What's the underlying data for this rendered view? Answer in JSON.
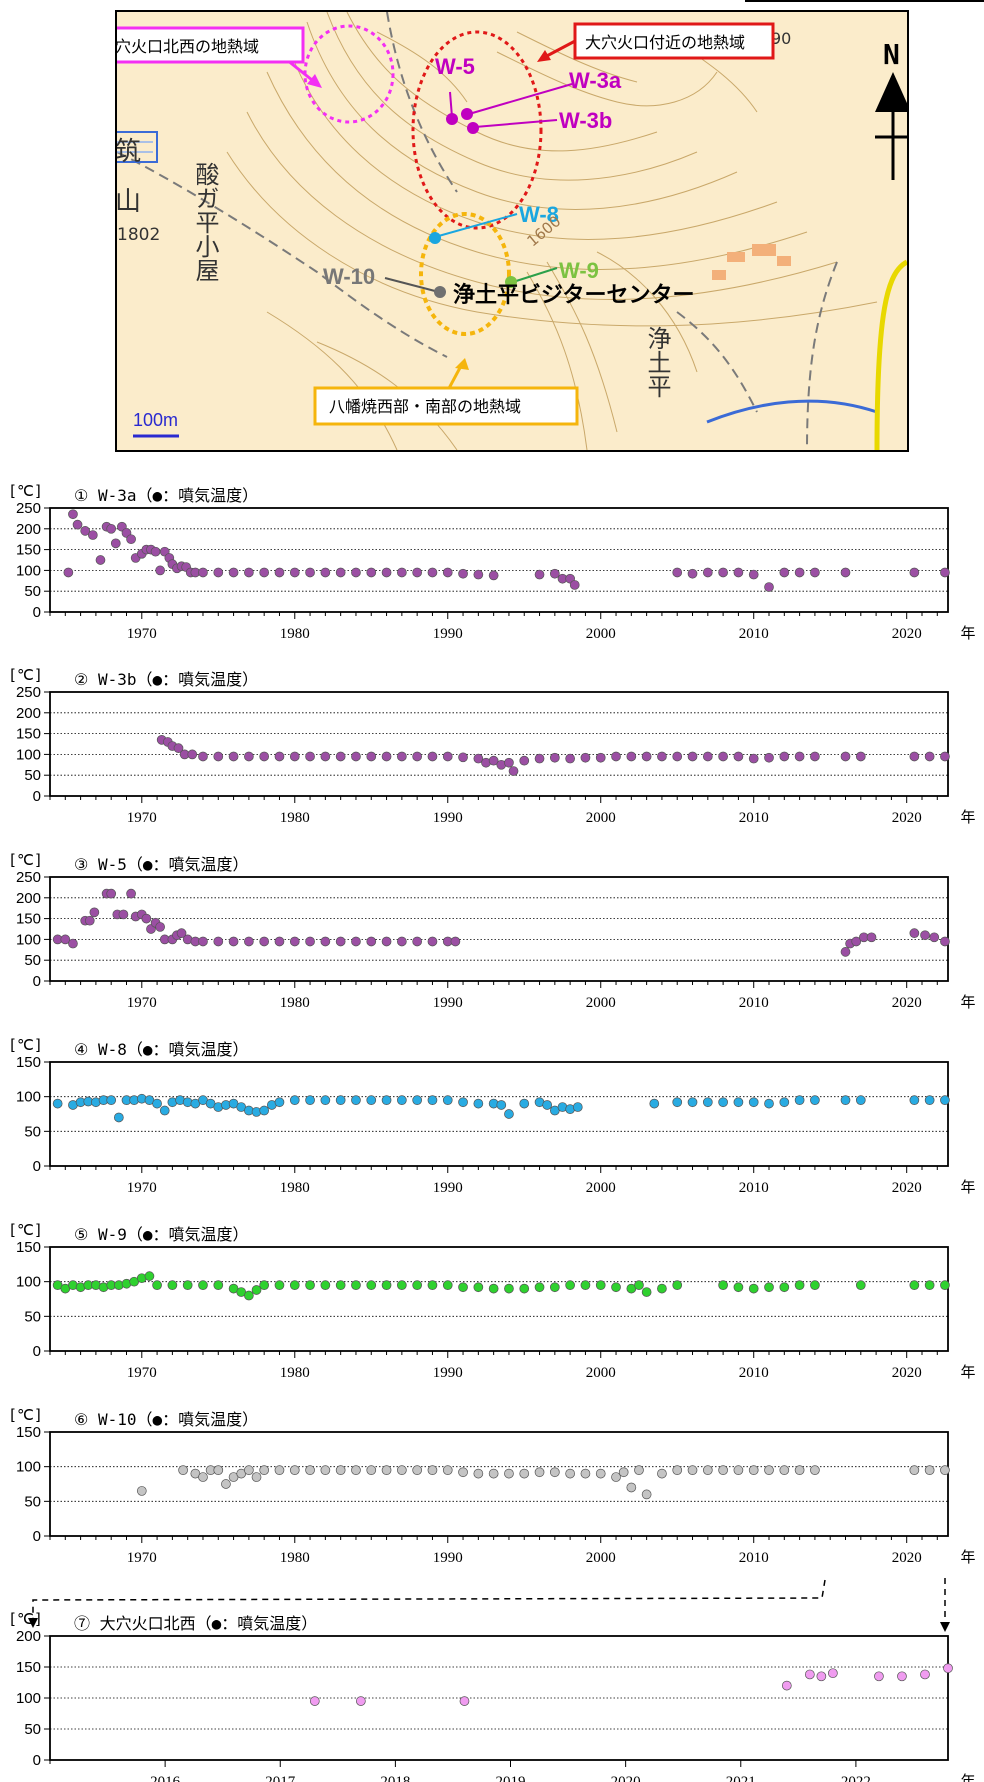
{
  "map": {
    "labels": {
      "area_nw": "大穴火口北西の地熱域",
      "area_crater": "大穴火口付近の地熱域",
      "area_hachiman": "八幡焼西部・南部の地熱域",
      "north": "N",
      "scale": "100m",
      "visitor_center": "浄土平ビジターセンター",
      "hut": "酸ガ平小屋",
      "mountain": "山",
      "mountain_prefix": "筑",
      "elevation": "1802",
      "jodo": "浄土平",
      "contour_90": "90",
      "contour_1600": "1600"
    },
    "stations": [
      {
        "id": "W-5",
        "color": "#c000c0"
      },
      {
        "id": "W-3a",
        "color": "#c000c0"
      },
      {
        "id": "W-3b",
        "color": "#c000c0"
      },
      {
        "id": "W-8",
        "color": "#1aa6e0"
      },
      {
        "id": "W-9",
        "color": "#7cc242"
      },
      {
        "id": "W-10",
        "color": "#808080"
      }
    ]
  },
  "chart_data": [
    {
      "type": "scatter",
      "title": "① W-3a（●：噴気温度）",
      "y_unit": "[℃]",
      "x_unit": "年",
      "xlim": [
        1964,
        2022.7
      ],
      "ylim": [
        0,
        250
      ],
      "y_ticks": [
        0,
        50,
        100,
        150,
        200,
        250
      ],
      "x_ticks": [
        1970,
        1980,
        1990,
        2000,
        2010,
        2020
      ],
      "grid": "horizontal-dotted",
      "color": "#9b4fa3",
      "x": [
        1965.2,
        1965.5,
        1965.8,
        1966.3,
        1966.8,
        1967.3,
        1967.7,
        1968.0,
        1968.3,
        1968.7,
        1969.0,
        1969.3,
        1969.6,
        1970.0,
        1970.3,
        1970.6,
        1970.9,
        1971.2,
        1971.5,
        1971.8,
        1972.0,
        1972.3,
        1972.6,
        1972.9,
        1973.2,
        1973.5,
        1974.0,
        1975.0,
        1976.0,
        1977.0,
        1978.0,
        1979.0,
        1980.0,
        1981.0,
        1982.0,
        1983.0,
        1984.0,
        1985.0,
        1986.0,
        1987.0,
        1988.0,
        1989.0,
        1990.0,
        1991.0,
        1992.0,
        1993.0,
        1996.0,
        1997.0,
        1997.5,
        1998.0,
        1998.3,
        2005.0,
        2006.0,
        2007.0,
        2008.0,
        2009.0,
        2010.0,
        2011.0,
        2012.0,
        2013.0,
        2014.0,
        2016.0,
        2020.5,
        2022.5
      ],
      "y": [
        95,
        235,
        210,
        195,
        185,
        125,
        205,
        200,
        165,
        205,
        190,
        175,
        130,
        140,
        150,
        150,
        145,
        100,
        145,
        130,
        115,
        105,
        110,
        108,
        95,
        95,
        95,
        95,
        95,
        95,
        95,
        95,
        95,
        95,
        95,
        95,
        95,
        95,
        95,
        95,
        95,
        95,
        95,
        92,
        90,
        88,
        90,
        92,
        80,
        80,
        65,
        95,
        92,
        95,
        95,
        95,
        90,
        60,
        95,
        95,
        95,
        95,
        95,
        95
      ],
      "bottom_note": ""
    },
    {
      "type": "scatter",
      "title": "② W-3b（●：噴気温度）",
      "y_unit": "[℃]",
      "x_unit": "年",
      "xlim": [
        1964,
        2022.7
      ],
      "ylim": [
        0,
        250
      ],
      "y_ticks": [
        0,
        50,
        100,
        150,
        200,
        250
      ],
      "x_ticks": [
        1970,
        1980,
        1990,
        2000,
        2010,
        2020
      ],
      "grid": "horizontal-dotted",
      "color": "#9b4fa3",
      "x": [
        1971.3,
        1971.7,
        1972.0,
        1972.4,
        1972.8,
        1973.3,
        1974.0,
        1975.0,
        1976.0,
        1977.0,
        1978.0,
        1979.0,
        1980.0,
        1981.0,
        1982.0,
        1983.0,
        1984.0,
        1985.0,
        1986.0,
        1987.0,
        1988.0,
        1989.0,
        1990.0,
        1991.0,
        1992.0,
        1992.5,
        1993.0,
        1993.5,
        1994.0,
        1994.3,
        1995.0,
        1996.0,
        1997.0,
        1998.0,
        1999.0,
        2000.0,
        2001.0,
        2002.0,
        2003.0,
        2004.0,
        2005.0,
        2006.0,
        2007.0,
        2008.0,
        2009.0,
        2010.0,
        2011.0,
        2012.0,
        2013.0,
        2014.0,
        2016.0,
        2017.0,
        2020.5,
        2021.5,
        2022.5
      ],
      "y": [
        135,
        130,
        120,
        115,
        100,
        100,
        95,
        95,
        95,
        95,
        95,
        95,
        95,
        95,
        95,
        95,
        95,
        95,
        95,
        95,
        95,
        95,
        95,
        93,
        90,
        80,
        85,
        75,
        80,
        60,
        85,
        90,
        92,
        90,
        92,
        92,
        95,
        95,
        95,
        95,
        95,
        95,
        95,
        95,
        95,
        90,
        92,
        95,
        95,
        95,
        95,
        95,
        95,
        95,
        95
      ],
      "bottom_note": ""
    },
    {
      "type": "scatter",
      "title": "③ W-5（●：噴気温度）",
      "y_unit": "[℃]",
      "x_unit": "年",
      "xlim": [
        1964,
        2022.7
      ],
      "ylim": [
        0,
        250
      ],
      "y_ticks": [
        0,
        50,
        100,
        150,
        200,
        250
      ],
      "x_ticks": [
        1970,
        1980,
        1990,
        2000,
        2010,
        2020
      ],
      "grid": "horizontal-dotted",
      "color": "#9b4fa3",
      "x": [
        1964.5,
        1965.0,
        1965.5,
        1966.3,
        1966.6,
        1966.9,
        1967.7,
        1968.0,
        1968.4,
        1968.8,
        1969.3,
        1969.6,
        1970.0,
        1970.3,
        1970.6,
        1970.9,
        1971.2,
        1971.5,
        1972.0,
        1972.3,
        1972.6,
        1973.0,
        1973.5,
        1974.0,
        1975.0,
        1976.0,
        1977.0,
        1978.0,
        1979.0,
        1980.0,
        1981.0,
        1982.0,
        1983.0,
        1984.0,
        1985.0,
        1986.0,
        1987.0,
        1988.0,
        1989.0,
        1990.0,
        1990.5,
        2016.0,
        2016.3,
        2016.7,
        2017.2,
        2017.7,
        2020.5,
        2021.2,
        2021.8,
        2022.5
      ],
      "y": [
        100,
        100,
        90,
        145,
        145,
        165,
        210,
        210,
        160,
        160,
        210,
        155,
        160,
        150,
        125,
        140,
        130,
        100,
        100,
        110,
        115,
        100,
        95,
        95,
        95,
        95,
        95,
        95,
        95,
        95,
        95,
        95,
        95,
        95,
        95,
        95,
        95,
        95,
        95,
        95,
        95,
        70,
        90,
        95,
        105,
        105,
        115,
        110,
        105,
        95
      ],
      "bottom_note": ""
    },
    {
      "type": "scatter",
      "title": "④ W-8（●：噴気温度）",
      "y_unit": "[℃]",
      "x_unit": "年",
      "xlim": [
        1964,
        2022.7
      ],
      "ylim": [
        0,
        150
      ],
      "y_ticks": [
        0,
        50,
        100,
        150
      ],
      "x_ticks": [
        1970,
        1980,
        1990,
        2000,
        2010,
        2020
      ],
      "grid": "horizontal-dotted",
      "color": "#29abe2",
      "x": [
        1964.5,
        1965.5,
        1966.0,
        1966.5,
        1967.0,
        1967.5,
        1968.0,
        1968.5,
        1969.0,
        1969.5,
        1970.0,
        1970.5,
        1971.0,
        1971.5,
        1972.0,
        1972.5,
        1973.0,
        1973.5,
        1974.0,
        1974.5,
        1975.0,
        1975.5,
        1976.0,
        1976.5,
        1977.0,
        1977.5,
        1978.0,
        1978.5,
        1979.0,
        1980.0,
        1981.0,
        1982.0,
        1983.0,
        1984.0,
        1985.0,
        1986.0,
        1987.0,
        1988.0,
        1989.0,
        1990.0,
        1991.0,
        1992.0,
        1993.0,
        1993.5,
        1994.0,
        1995.0,
        1996.0,
        1996.5,
        1997.0,
        1997.5,
        1998.0,
        1998.5,
        2003.5,
        2005.0,
        2006.0,
        2007.0,
        2008.0,
        2009.0,
        2010.0,
        2011.0,
        2012.0,
        2013.0,
        2014.0,
        2016.0,
        2017.0,
        2020.5,
        2021.5,
        2022.5
      ],
      "y": [
        90,
        88,
        92,
        93,
        92,
        95,
        95,
        70,
        95,
        95,
        97,
        95,
        90,
        80,
        92,
        95,
        92,
        90,
        95,
        90,
        85,
        88,
        90,
        85,
        80,
        78,
        80,
        88,
        92,
        95,
        95,
        95,
        95,
        95,
        95,
        95,
        95,
        95,
        95,
        95,
        92,
        90,
        90,
        88,
        75,
        90,
        92,
        88,
        80,
        85,
        82,
        85,
        90,
        92,
        92,
        92,
        92,
        92,
        92,
        90,
        92,
        95,
        95,
        95,
        95,
        95,
        95,
        95
      ],
      "bottom_note": ""
    },
    {
      "type": "scatter",
      "title": "⑤ W-9（●：噴気温度）",
      "y_unit": "[℃]",
      "x_unit": "年",
      "xlim": [
        1964,
        2022.7
      ],
      "ylim": [
        0,
        150
      ],
      "y_ticks": [
        0,
        50,
        100,
        150
      ],
      "x_ticks": [
        1970,
        1980,
        1990,
        2000,
        2010,
        2020
      ],
      "grid": "horizontal-dotted",
      "color": "#2fd12f",
      "x": [
        1964.5,
        1965.0,
        1965.5,
        1966.0,
        1966.5,
        1967.0,
        1967.5,
        1968.0,
        1968.5,
        1969.0,
        1969.5,
        1970.0,
        1970.5,
        1971.0,
        1972.0,
        1973.0,
        1974.0,
        1975.0,
        1976.0,
        1976.5,
        1977.0,
        1977.5,
        1978.0,
        1979.0,
        1980.0,
        1981.0,
        1982.0,
        1983.0,
        1984.0,
        1985.0,
        1986.0,
        1987.0,
        1988.0,
        1989.0,
        1990.0,
        1991.0,
        1992.0,
        1993.0,
        1994.0,
        1995.0,
        1996.0,
        1997.0,
        1998.0,
        1999.0,
        2000.0,
        2001.0,
        2002.0,
        2002.5,
        2003.0,
        2004.0,
        2005.0,
        2008.0,
        2009.0,
        2010.0,
        2011.0,
        2012.0,
        2013.0,
        2014.0,
        2017.0,
        2020.5,
        2021.5,
        2022.5
      ],
      "y": [
        95,
        90,
        95,
        92,
        95,
        95,
        92,
        95,
        95,
        97,
        100,
        105,
        108,
        95,
        95,
        95,
        95,
        95,
        90,
        85,
        80,
        88,
        95,
        95,
        95,
        95,
        95,
        95,
        95,
        95,
        95,
        95,
        95,
        95,
        95,
        92,
        92,
        90,
        90,
        90,
        92,
        92,
        95,
        95,
        95,
        92,
        90,
        95,
        85,
        90,
        95,
        95,
        92,
        90,
        92,
        92,
        95,
        95,
        95,
        95,
        95,
        95
      ],
      "bottom_note": ""
    },
    {
      "type": "scatter",
      "title": "⑥ W-10（●：噴気温度）",
      "y_unit": "[℃]",
      "x_unit": "年",
      "xlim": [
        1964,
        2022.7
      ],
      "ylim": [
        0,
        150
      ],
      "y_ticks": [
        0,
        50,
        100,
        150
      ],
      "x_ticks": [
        1970,
        1980,
        1990,
        2000,
        2010,
        2020
      ],
      "grid": "horizontal-dotted",
      "color": "#c4c4c4",
      "x": [
        1970.0,
        1972.7,
        1973.5,
        1974.0,
        1974.5,
        1975.0,
        1975.5,
        1976.0,
        1976.5,
        1977.0,
        1977.5,
        1978.0,
        1979.0,
        1980.0,
        1981.0,
        1982.0,
        1983.0,
        1984.0,
        1985.0,
        1986.0,
        1987.0,
        1988.0,
        1989.0,
        1990.0,
        1991.0,
        1992.0,
        1993.0,
        1994.0,
        1995.0,
        1996.0,
        1997.0,
        1998.0,
        1999.0,
        2000.0,
        2001.0,
        2001.5,
        2002.0,
        2002.5,
        2003.0,
        2004.0,
        2005.0,
        2006.0,
        2007.0,
        2008.0,
        2009.0,
        2010.0,
        2011.0,
        2012.0,
        2013.0,
        2014.0,
        2020.5,
        2021.5,
        2022.5
      ],
      "y": [
        65,
        95,
        90,
        85,
        95,
        95,
        75,
        85,
        90,
        95,
        85,
        95,
        95,
        95,
        95,
        95,
        95,
        95,
        95,
        95,
        95,
        95,
        95,
        95,
        92,
        90,
        90,
        90,
        90,
        92,
        92,
        90,
        90,
        90,
        85,
        92,
        70,
        95,
        60,
        90,
        95,
        95,
        95,
        95,
        95,
        95,
        95,
        95,
        95,
        95,
        95,
        95,
        95
      ],
      "bottom_note": ""
    },
    {
      "type": "scatter",
      "title": "⑦ 大穴火口北西（●：噴気温度）",
      "y_unit": "[℃]",
      "x_unit": "年",
      "xlim": [
        2015,
        2022.8
      ],
      "ylim": [
        0,
        200
      ],
      "y_ticks": [
        0,
        50,
        100,
        150,
        200
      ],
      "x_ticks": [
        2016,
        2017,
        2018,
        2019,
        2020,
        2021,
        2022
      ],
      "grid": "horizontal-dotted",
      "color": "#f09cf0",
      "x": [
        2017.3,
        2017.7,
        2018.6,
        2021.4,
        2021.6,
        2021.7,
        2021.8,
        2022.2,
        2022.4,
        2022.6,
        2022.8
      ],
      "y": [
        95,
        95,
        95,
        120,
        138,
        135,
        140,
        135,
        135,
        138,
        148
      ],
      "bottom_note": ""
    }
  ]
}
